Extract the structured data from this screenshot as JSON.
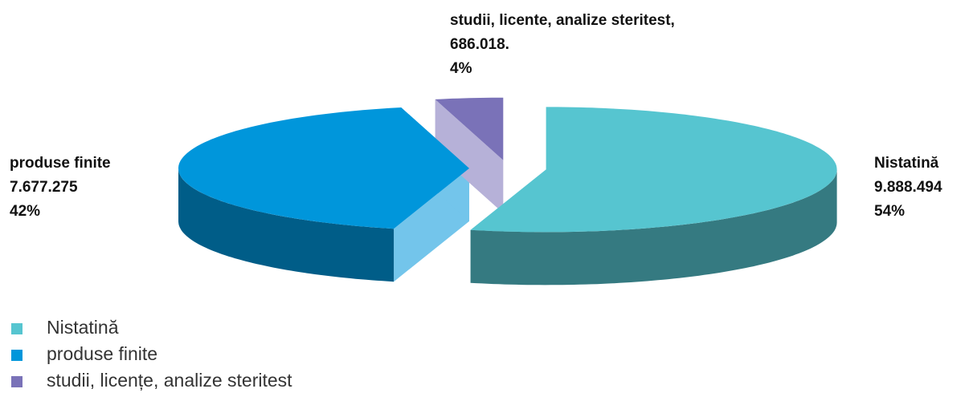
{
  "chart_data": {
    "type": "pie3d",
    "categories": [
      "Nistatină",
      "produse finite",
      "studii, licențe, analize steritest"
    ],
    "data_label_names": [
      "Nistatină",
      "produse finite",
      "studii, licente, analize steritest,"
    ],
    "values": [
      9888494,
      7677275,
      686018
    ],
    "value_labels": [
      "9.888.494",
      "7.677.275",
      "686.018."
    ],
    "percentages": [
      54,
      42,
      4
    ],
    "percentage_labels": [
      "54%",
      "42%",
      "4%"
    ],
    "colors": [
      "#56c5d0",
      "#0096db",
      "#7a72b8"
    ],
    "legend": "bottom-left"
  }
}
